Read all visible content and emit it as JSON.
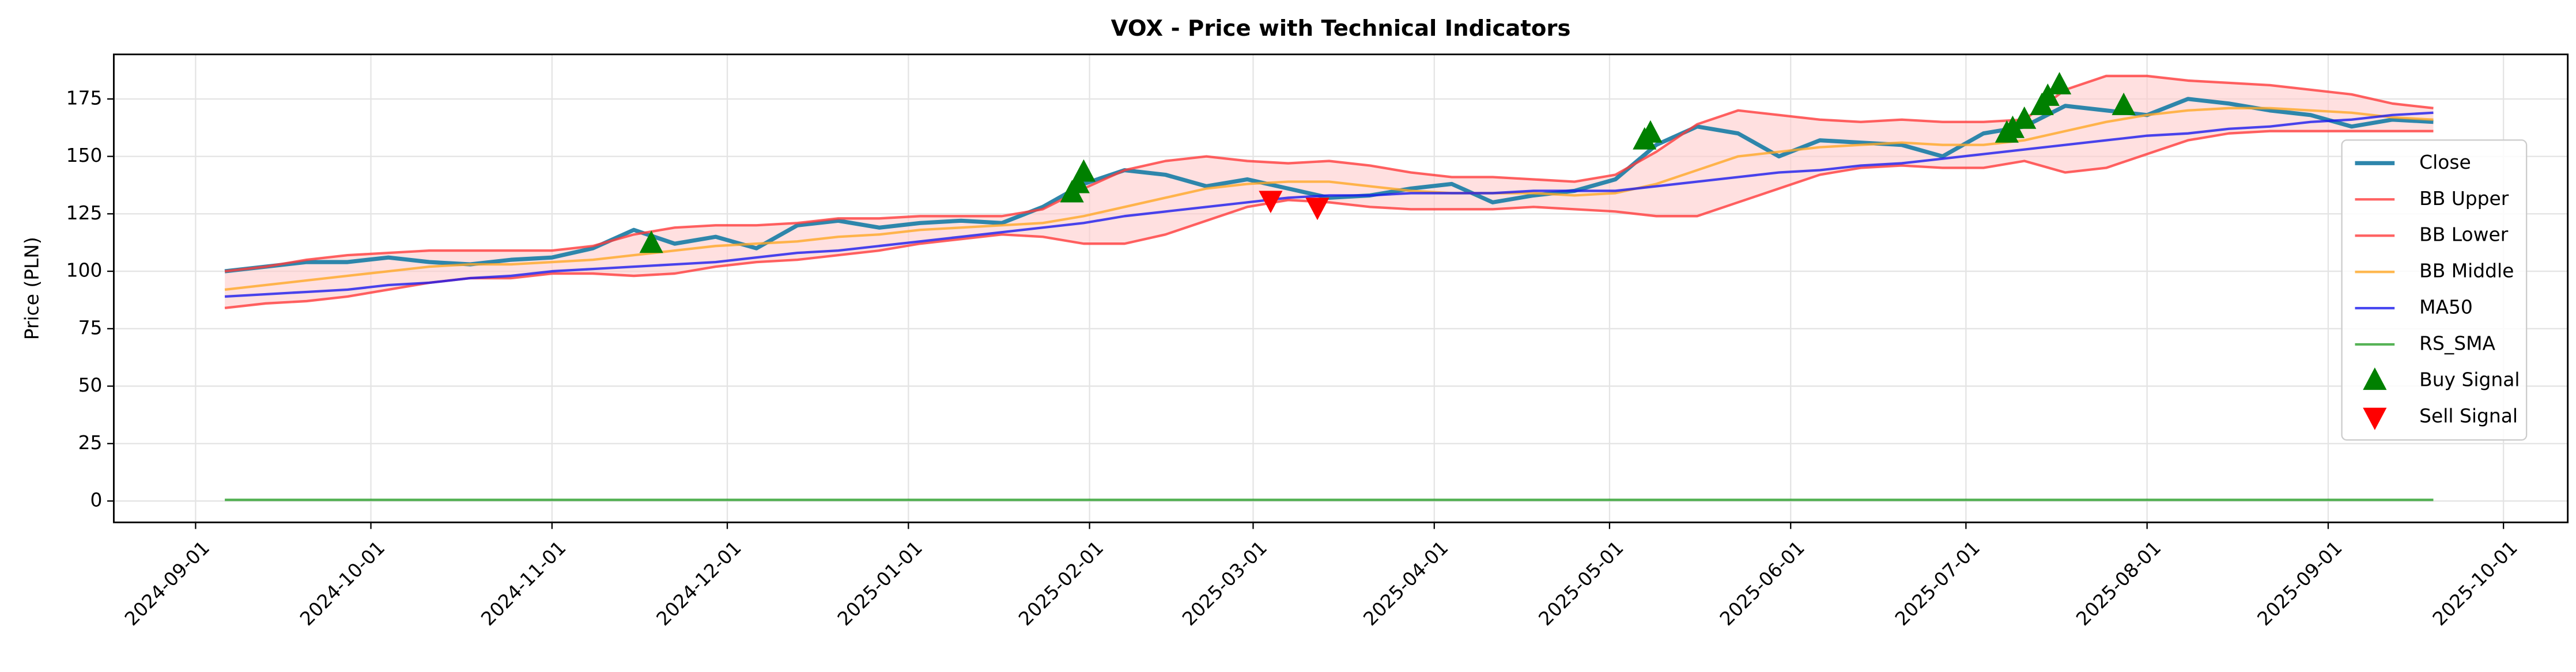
{
  "chart_data": {
    "type": "line",
    "title": "VOX - Price with Technical Indicators",
    "y_label": "Price (PLN)",
    "x": [
      "2024-09-06",
      "2024-09-13",
      "2024-09-20",
      "2024-09-27",
      "2024-10-04",
      "2024-10-11",
      "2024-10-18",
      "2024-10-25",
      "2024-11-01",
      "2024-11-08",
      "2024-11-15",
      "2024-11-22",
      "2024-11-29",
      "2024-12-06",
      "2024-12-13",
      "2024-12-20",
      "2024-12-27",
      "2025-01-03",
      "2025-01-10",
      "2025-01-17",
      "2025-01-24",
      "2025-01-31",
      "2025-02-07",
      "2025-02-14",
      "2025-02-21",
      "2025-02-28",
      "2025-03-07",
      "2025-03-14",
      "2025-03-21",
      "2025-03-28",
      "2025-04-04",
      "2025-04-11",
      "2025-04-18",
      "2025-04-25",
      "2025-05-02",
      "2025-05-09",
      "2025-05-16",
      "2025-05-23",
      "2025-05-30",
      "2025-06-06",
      "2025-06-13",
      "2025-06-20",
      "2025-06-27",
      "2025-07-04",
      "2025-07-11",
      "2025-07-18",
      "2025-07-25",
      "2025-08-01",
      "2025-08-08",
      "2025-08-15",
      "2025-08-22",
      "2025-08-29",
      "2025-09-05",
      "2025-09-12",
      "2025-09-19"
    ],
    "series": [
      {
        "name": "Close",
        "color": "#2e86ab",
        "width": 2.5,
        "values": [
          100,
          102,
          104,
          104,
          106,
          104,
          103,
          105,
          106,
          110,
          118,
          112,
          115,
          110,
          120,
          122,
          119,
          121,
          122,
          121,
          128,
          138,
          144,
          142,
          137,
          140,
          136,
          132,
          133,
          136,
          138,
          130,
          133,
          135,
          140,
          155,
          163,
          160,
          150,
          157,
          156,
          155,
          150,
          160,
          163,
          172,
          170,
          168,
          175,
          173,
          170,
          168,
          163,
          166,
          165
        ]
      },
      {
        "name": "BB Upper",
        "color": "#ff3b3b",
        "width": 1.5,
        "values": [
          100,
          102,
          105,
          107,
          108,
          109,
          109,
          109,
          109,
          111,
          116,
          119,
          120,
          120,
          121,
          123,
          123,
          124,
          124,
          124,
          127,
          136,
          144,
          148,
          150,
          148,
          147,
          148,
          146,
          143,
          141,
          141,
          140,
          139,
          142,
          152,
          164,
          170,
          168,
          166,
          165,
          166,
          165,
          165,
          166,
          179,
          185,
          185,
          183,
          182,
          181,
          179,
          177,
          173,
          171
        ]
      },
      {
        "name": "BB Lower",
        "color": "#ff3b3b",
        "width": 1.5,
        "values": [
          84,
          86,
          87,
          89,
          92,
          95,
          97,
          97,
          99,
          99,
          98,
          99,
          102,
          104,
          105,
          107,
          109,
          112,
          114,
          116,
          115,
          112,
          112,
          116,
          122,
          128,
          131,
          130,
          128,
          127,
          127,
          127,
          128,
          127,
          126,
          124,
          124,
          130,
          136,
          142,
          145,
          146,
          145,
          145,
          148,
          143,
          145,
          151,
          157,
          160,
          161,
          161,
          161,
          161,
          161
        ]
      },
      {
        "name": "BB Middle",
        "color": "#ffa726",
        "width": 1.5,
        "values": [
          92,
          94,
          96,
          98,
          100,
          102,
          103,
          103,
          104,
          105,
          107,
          109,
          111,
          112,
          113,
          115,
          116,
          118,
          119,
          120,
          121,
          124,
          128,
          132,
          136,
          138,
          139,
          139,
          137,
          135,
          134,
          134,
          134,
          133,
          134,
          138,
          144,
          150,
          152,
          154,
          155,
          156,
          155,
          155,
          157,
          161,
          165,
          168,
          170,
          171,
          171,
          170,
          169,
          167,
          166
        ]
      },
      {
        "name": "MA50",
        "color": "#1a1aee",
        "width": 1.5,
        "values": [
          89,
          90,
          91,
          92,
          94,
          95,
          97,
          98,
          100,
          101,
          102,
          103,
          104,
          106,
          108,
          109,
          111,
          113,
          115,
          117,
          119,
          121,
          124,
          126,
          128,
          130,
          132,
          133,
          133,
          134,
          134,
          134,
          135,
          135,
          135,
          137,
          139,
          141,
          143,
          144,
          146,
          147,
          149,
          151,
          153,
          155,
          157,
          159,
          160,
          162,
          163,
          165,
          166,
          168,
          169
        ]
      },
      {
        "name": "RS_SMA",
        "color": "#2ca02c",
        "width": 1.5,
        "values": [
          0.5,
          0.5,
          0.5,
          0.5,
          0.5,
          0.5,
          0.5,
          0.5,
          0.5,
          0.5,
          0.5,
          0.5,
          0.5,
          0.5,
          0.5,
          0.5,
          0.5,
          0.5,
          0.5,
          0.5,
          0.5,
          0.5,
          0.5,
          0.5,
          0.5,
          0.5,
          0.5,
          0.5,
          0.5,
          0.5,
          0.5,
          0.5,
          0.5,
          0.5,
          0.5,
          0.5,
          0.5,
          0.5,
          0.5,
          0.5,
          0.5,
          0.5,
          0.5,
          0.5,
          0.5,
          0.5,
          0.5,
          0.5,
          0.5,
          0.5,
          0.5,
          0.5,
          0.5,
          0.5,
          0.5
        ]
      },
      {
        "name": "Buy Signal",
        "color": "#008000",
        "marker": "up",
        "x": [
          "2024-11-18",
          "2025-01-29",
          "2025-01-30",
          "2025-01-31",
          "2025-05-07",
          "2025-05-08",
          "2025-07-08",
          "2025-07-09",
          "2025-07-11",
          "2025-07-14",
          "2025-07-15",
          "2025-07-17",
          "2025-07-28"
        ],
        "values": [
          112,
          134,
          138,
          143,
          157,
          160,
          160,
          162,
          166,
          172,
          176,
          181,
          172
        ]
      },
      {
        "name": "Sell Signal",
        "color": "#ff0000",
        "marker": "down",
        "x": [
          "2025-03-04",
          "2025-03-12"
        ],
        "values": [
          131,
          128
        ]
      }
    ],
    "band_fill": {
      "series": [
        1,
        2
      ],
      "color": "#ffcccc"
    },
    "xlim": [
      "2024-08-18",
      "2025-10-12"
    ],
    "xticks": [
      "2024-09-01",
      "2024-10-01",
      "2024-11-01",
      "2024-12-01",
      "2025-01-01",
      "2025-02-01",
      "2025-03-01",
      "2025-04-01",
      "2025-05-01",
      "2025-06-01",
      "2025-07-01",
      "2025-08-01",
      "2025-09-01",
      "2025-10-01"
    ],
    "ylim": [
      -9.3,
      194.4
    ],
    "yticks": [
      0,
      25,
      50,
      75,
      100,
      125,
      150,
      175
    ],
    "grid": true,
    "legend": "right"
  }
}
